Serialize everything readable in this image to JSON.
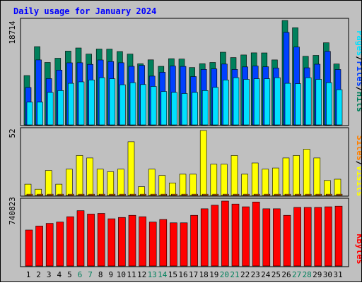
{
  "title": "Daily usage for January 2024",
  "colors": {
    "background": "#c0c0c0",
    "hits": "#00805c",
    "files": "#0040ff",
    "pages": "#00e0ff",
    "visits": "#ffff00",
    "sites": "#ff8000",
    "kbytes": "#ff0000",
    "title": "#0000ff",
    "weekend_day": "#00805c",
    "weekday": "#000000"
  },
  "legend": {
    "top": {
      "pages": "Pages",
      "sep1": "/",
      "files": "Files",
      "sep2": "/",
      "hits": "Hits"
    },
    "middle": {
      "sites": "Sites",
      "sep1": "/",
      "visits": "Visits"
    },
    "bottom": {
      "kbytes": "KBytes"
    }
  },
  "chart_data": [
    {
      "type": "bar",
      "panel": "hits-files-pages",
      "ymax_label": "18714",
      "ylim": [
        0,
        18714
      ],
      "categories": [
        "1",
        "2",
        "3",
        "4",
        "5",
        "6",
        "7",
        "8",
        "9",
        "10",
        "11",
        "12",
        "13",
        "14",
        "15",
        "16",
        "17",
        "18",
        "19",
        "20",
        "21",
        "22",
        "23",
        "24",
        "25",
        "26",
        "27",
        "28",
        "29",
        "30",
        "31"
      ],
      "weekend": [
        6,
        7,
        13,
        14,
        20,
        21,
        27,
        28
      ],
      "series": [
        {
          "name": "Hits",
          "values": [
            8835,
            14024,
            11187,
            11952,
            13225,
            13782,
            12698,
            13596,
            13583,
            13154,
            12698,
            10955,
            11655,
            10499,
            11860,
            11795,
            10276,
            10961,
            11195,
            13025,
            12061,
            12526,
            12914,
            12894,
            11650,
            18714,
            17413,
            12291,
            12460,
            14716,
            10915
          ]
        },
        {
          "name": "Files",
          "values": [
            6702,
            11650,
            8296,
            9819,
            11127,
            11145,
            10843,
            11627,
            11355,
            11138,
            10498,
            10664,
            8739,
            9431,
            10530,
            10478,
            8660,
            9955,
            10046,
            10894,
            9937,
            10397,
            10550,
            10415,
            10178,
            16576,
            13950,
            10233,
            10880,
            13174,
            9927
          ]
        },
        {
          "name": "Pages",
          "values": [
            4073,
            4073,
            5822,
            6157,
            7448,
            7715,
            8050,
            8460,
            8272,
            7200,
            7566,
            7232,
            6897,
            5977,
            5822,
            5625,
            5822,
            6157,
            6709,
            8050,
            8460,
            8158,
            8272,
            8272,
            8460,
            7448,
            7389,
            8460,
            8158,
            7566,
            6315
          ]
        }
      ]
    },
    {
      "type": "bar",
      "panel": "visits-sites",
      "ymax_label": "52",
      "ylim": [
        0,
        52
      ],
      "categories": [
        "1",
        "2",
        "3",
        "4",
        "5",
        "6",
        "7",
        "8",
        "9",
        "10",
        "11",
        "12",
        "13",
        "14",
        "15",
        "16",
        "17",
        "18",
        "19",
        "20",
        "21",
        "22",
        "23",
        "24",
        "25",
        "26",
        "27",
        "28",
        "29",
        "30",
        "31"
      ],
      "series": [
        {
          "name": "Visits",
          "values": [
            9,
            5,
            20,
            9,
            21,
            32,
            30,
            21,
            19,
            21,
            43,
            7,
            21,
            16,
            10,
            17,
            17,
            52,
            25,
            25,
            32,
            17,
            26,
            21,
            22,
            30,
            32,
            37,
            30,
            12,
            13
          ]
        },
        {
          "name": "Sites",
          "values": [
            1,
            1,
            1,
            1,
            1,
            1,
            1,
            1,
            1,
            1,
            1,
            1,
            1,
            1,
            1,
            1,
            1,
            1,
            1,
            1,
            1,
            1,
            1,
            1,
            1,
            1,
            1,
            1,
            1,
            1,
            1
          ]
        }
      ]
    },
    {
      "type": "bar",
      "panel": "kbytes",
      "ymax_label": "740823",
      "ylim": [
        0,
        740823
      ],
      "categories": [
        "1",
        "2",
        "3",
        "4",
        "5",
        "6",
        "7",
        "8",
        "9",
        "10",
        "11",
        "12",
        "13",
        "14",
        "15",
        "16",
        "17",
        "18",
        "19",
        "20",
        "21",
        "22",
        "23",
        "24",
        "25",
        "26",
        "27",
        "28",
        "29",
        "30",
        "31"
      ],
      "series": [
        {
          "name": "KBytes",
          "values": [
            411000,
            456000,
            486000,
            501000,
            562000,
            631000,
            593000,
            600000,
            539000,
            554000,
            578000,
            562000,
            501000,
            531000,
            493000,
            493000,
            578000,
            653000,
            693000,
            740823,
            707000,
            676000,
            730000,
            653000,
            653000,
            578000,
            668000,
            668000,
            668000,
            676000,
            683000
          ]
        }
      ]
    }
  ]
}
